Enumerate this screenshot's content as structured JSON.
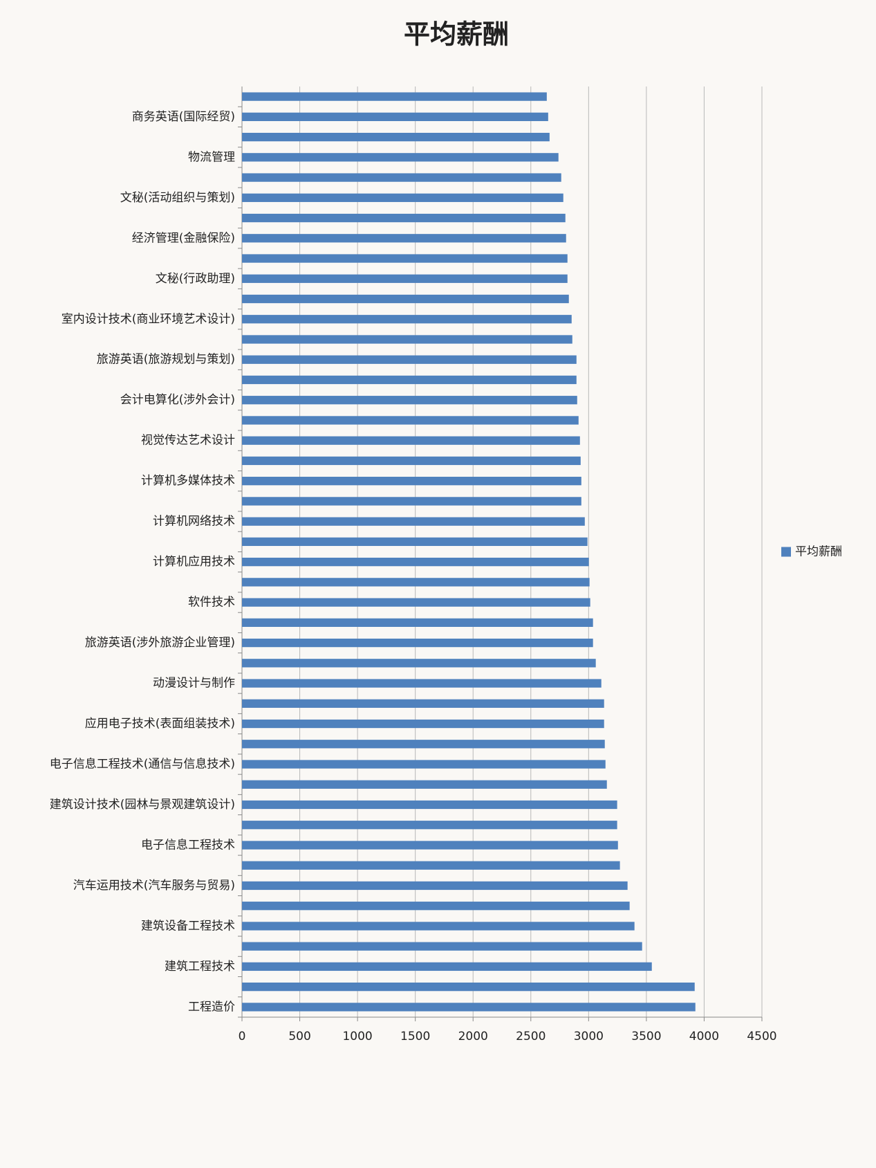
{
  "chart_data": {
    "type": "barh",
    "title": "平均薪酬",
    "categories": [
      null,
      "商务英语(国际经贸)",
      null,
      "物流管理",
      null,
      "文秘(活动组织与策划)",
      null,
      "经济管理(金融保险)",
      null,
      "文秘(行政助理)",
      null,
      "室内设计技术(商业环境艺术设计)",
      null,
      "旅游英语(旅游规划与策划)",
      null,
      "会计电算化(涉外会计)",
      null,
      "视觉传达艺术设计",
      null,
      "计算机多媒体技术",
      null,
      "计算机网络技术",
      null,
      "计算机应用技术",
      null,
      "软件技术",
      null,
      "旅游英语(涉外旅游企业管理)",
      null,
      "动漫设计与制作",
      null,
      "应用电子技术(表面组装技术)",
      null,
      "电子信息工程技术(通信与信息技术)",
      null,
      "建筑设计技术(园林与景观建筑设计)",
      null,
      "电子信息工程技术",
      null,
      "汽车运用技术(汽车服务与贸易)",
      null,
      "建筑设备工程技术",
      null,
      "建筑工程技术",
      null,
      "工程造价"
    ],
    "series": [
      {
        "name": "平均薪酬",
        "color": "#4f81bd",
        "values": [
          2638,
          2650,
          2662,
          2739,
          2763,
          2781,
          2799,
          2805,
          2817,
          2817,
          2829,
          2853,
          2859,
          2895,
          2895,
          2901,
          2913,
          2925,
          2931,
          2937,
          2937,
          2967,
          2990,
          3002,
          3008,
          3014,
          3038,
          3038,
          3062,
          3110,
          3134,
          3134,
          3140,
          3146,
          3158,
          3247,
          3247,
          3254,
          3271,
          3337,
          3355,
          3397,
          3463,
          3547,
          3918,
          3924
        ]
      }
    ],
    "xlim": [
      0,
      4500
    ],
    "xticks": [
      0,
      500,
      1000,
      1500,
      2000,
      2500,
      3000,
      3500,
      4000,
      4500
    ],
    "grid": true,
    "legend": "right"
  }
}
